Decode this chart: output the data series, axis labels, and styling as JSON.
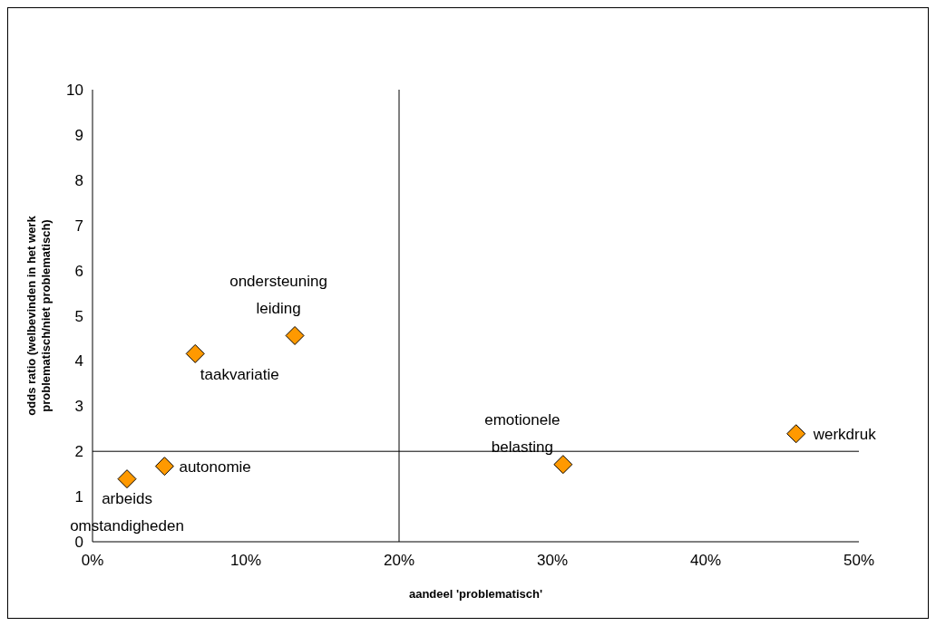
{
  "chart_data": {
    "type": "scatter",
    "xlabel": "aandeel 'problematisch'",
    "ylabel": "odds ratio (welbevinden in het werk\nproblematisch/niet problematisch)",
    "x": [
      2.25,
      4.7,
      6.7,
      13.2,
      30.7,
      45.9
    ],
    "series": [
      {
        "color": "#ff9900",
        "values": [
          1.39,
          1.67,
          4.16,
          4.56,
          1.71,
          2.39
        ]
      }
    ],
    "marker": "diamond",
    "grid": false,
    "legend": false,
    "xlim": [
      0,
      50
    ],
    "xticks": [
      {
        "value": 0,
        "label": "0%"
      },
      {
        "value": 10,
        "label": "10%"
      },
      {
        "value": 20,
        "label": "20%"
      },
      {
        "value": 30,
        "label": "30%"
      },
      {
        "value": 40,
        "label": "40%"
      },
      {
        "value": 50,
        "label": "50%"
      }
    ],
    "ylim": [
      0,
      10
    ],
    "yticks": [
      0,
      1,
      2,
      3,
      4,
      5,
      6,
      7,
      8,
      9,
      10
    ],
    "ref_lines": [
      {
        "axis": "x",
        "value": 20,
        "color": "#000000"
      },
      {
        "axis": "y",
        "value": 2,
        "color": "#000000"
      }
    ],
    "annotations": [
      {
        "text": "arbeids\nomstandigheden",
        "x": 2.25,
        "y": 1.39
      },
      {
        "text": "autonomie",
        "x": 4.7,
        "y": 1.67
      },
      {
        "text": "taakvariatie",
        "x": 6.7,
        "y": 4.16
      },
      {
        "text": "ondersteuning\nleiding",
        "x": 13.2,
        "y": 4.56
      },
      {
        "text": "emotionele\nbelasting",
        "x": 30.7,
        "y": 1.71
      },
      {
        "text": "werkdruk",
        "x": 45.9,
        "y": 2.39
      }
    ]
  }
}
